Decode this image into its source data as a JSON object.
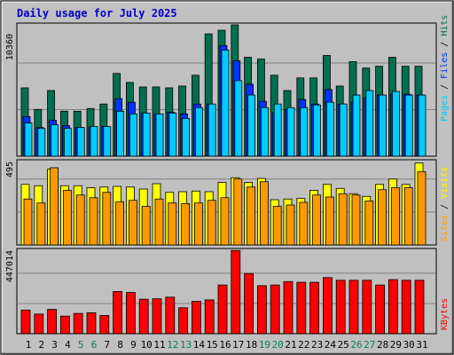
{
  "chart_data": [
    {
      "type": "bar",
      "title": "Daily usage for July 2025",
      "x": [
        "1",
        "2",
        "3",
        "4",
        "5",
        "6",
        "7",
        "8",
        "9",
        "10",
        "11",
        "12",
        "13",
        "14",
        "15",
        "16",
        "17",
        "18",
        "19",
        "20",
        "21",
        "22",
        "23",
        "24",
        "25",
        "26",
        "27",
        "28",
        "29",
        "30",
        "31"
      ],
      "weekend_days": [
        "5",
        "6",
        "12",
        "13",
        "19",
        "20",
        "26",
        "27"
      ],
      "y_tick_label": "10360",
      "y_tick_value": 10360,
      "ylim": [
        0,
        14800
      ],
      "series": [
        {
          "name": "Hits",
          "color": "#006f4f",
          "values": [
            7600,
            5200,
            7300,
            5000,
            5000,
            5300,
            5800,
            9200,
            8200,
            7700,
            7700,
            7600,
            7800,
            9000,
            13600,
            14000,
            14600,
            11000,
            10800,
            9000,
            7300,
            8700,
            8700,
            11200,
            7800,
            10500,
            9800,
            10000,
            11000,
            10000,
            10000
          ]
        },
        {
          "name": "Files",
          "color": "#0033ff",
          "values": [
            4400,
            3200,
            4000,
            3400,
            3200,
            3200,
            3300,
            6400,
            6000,
            4800,
            4700,
            4900,
            4700,
            5800,
            5800,
            12300,
            10600,
            8000,
            6100,
            4800,
            5200,
            6300,
            5800,
            7400,
            5800,
            6000,
            6500,
            6800,
            6900,
            6900,
            6800
          ]
        },
        {
          "name": "Pages",
          "color": "#00ccff",
          "values": [
            3700,
            3100,
            3500,
            3100,
            3200,
            3300,
            3300,
            5000,
            4700,
            4800,
            4700,
            4800,
            4200,
            5400,
            5800,
            11800,
            8400,
            6800,
            5400,
            5800,
            5400,
            5400,
            5700,
            6000,
            5800,
            6800,
            7300,
            6800,
            7200,
            6800,
            6800
          ]
        }
      ]
    },
    {
      "type": "bar",
      "x": [
        "1",
        "2",
        "3",
        "4",
        "5",
        "6",
        "7",
        "8",
        "9",
        "10",
        "11",
        "12",
        "13",
        "14",
        "15",
        "16",
        "17",
        "18",
        "19",
        "20",
        "21",
        "22",
        "23",
        "24",
        "25",
        "26",
        "27",
        "28",
        "29",
        "30",
        "31"
      ],
      "y_tick_label": "495",
      "y_tick_value": 495,
      "ylim": [
        0,
        640
      ],
      "series": [
        {
          "name": "Visits",
          "color": "#ffff00",
          "values": [
            455,
            445,
            570,
            445,
            445,
            430,
            435,
            440,
            435,
            420,
            460,
            395,
            400,
            405,
            400,
            470,
            505,
            470,
            500,
            340,
            345,
            350,
            410,
            455,
            425,
            385,
            365,
            455,
            495,
            455,
            615
          ]
        },
        {
          "name": "Sites",
          "color": "#ff9900",
          "values": [
            345,
            315,
            580,
            410,
            375,
            355,
            395,
            325,
            335,
            290,
            345,
            315,
            310,
            315,
            335,
            355,
            495,
            435,
            475,
            290,
            300,
            320,
            375,
            360,
            385,
            375,
            330,
            415,
            430,
            430,
            550
          ]
        }
      ]
    },
    {
      "type": "bar",
      "x": [
        "1",
        "2",
        "3",
        "4",
        "5",
        "6",
        "7",
        "8",
        "9",
        "10",
        "11",
        "12",
        "13",
        "14",
        "15",
        "16",
        "17",
        "18",
        "19",
        "20",
        "21",
        "22",
        "23",
        "24",
        "25",
        "26",
        "27",
        "28",
        "29",
        "30",
        "31"
      ],
      "y_tick_label": "447014",
      "y_tick_value": 447014,
      "ylim": [
        0,
        630000
      ],
      "series": [
        {
          "name": "KBytes",
          "color": "#ff0000",
          "values": [
            175000,
            145000,
            180000,
            130000,
            150000,
            155000,
            135000,
            312000,
            305000,
            255000,
            258000,
            270000,
            192000,
            240000,
            250000,
            360000,
            615000,
            445000,
            355000,
            360000,
            385000,
            380000,
            380000,
            415000,
            395000,
            395000,
            395000,
            360000,
            400000,
            395000,
            395000
          ]
        }
      ]
    }
  ]
}
